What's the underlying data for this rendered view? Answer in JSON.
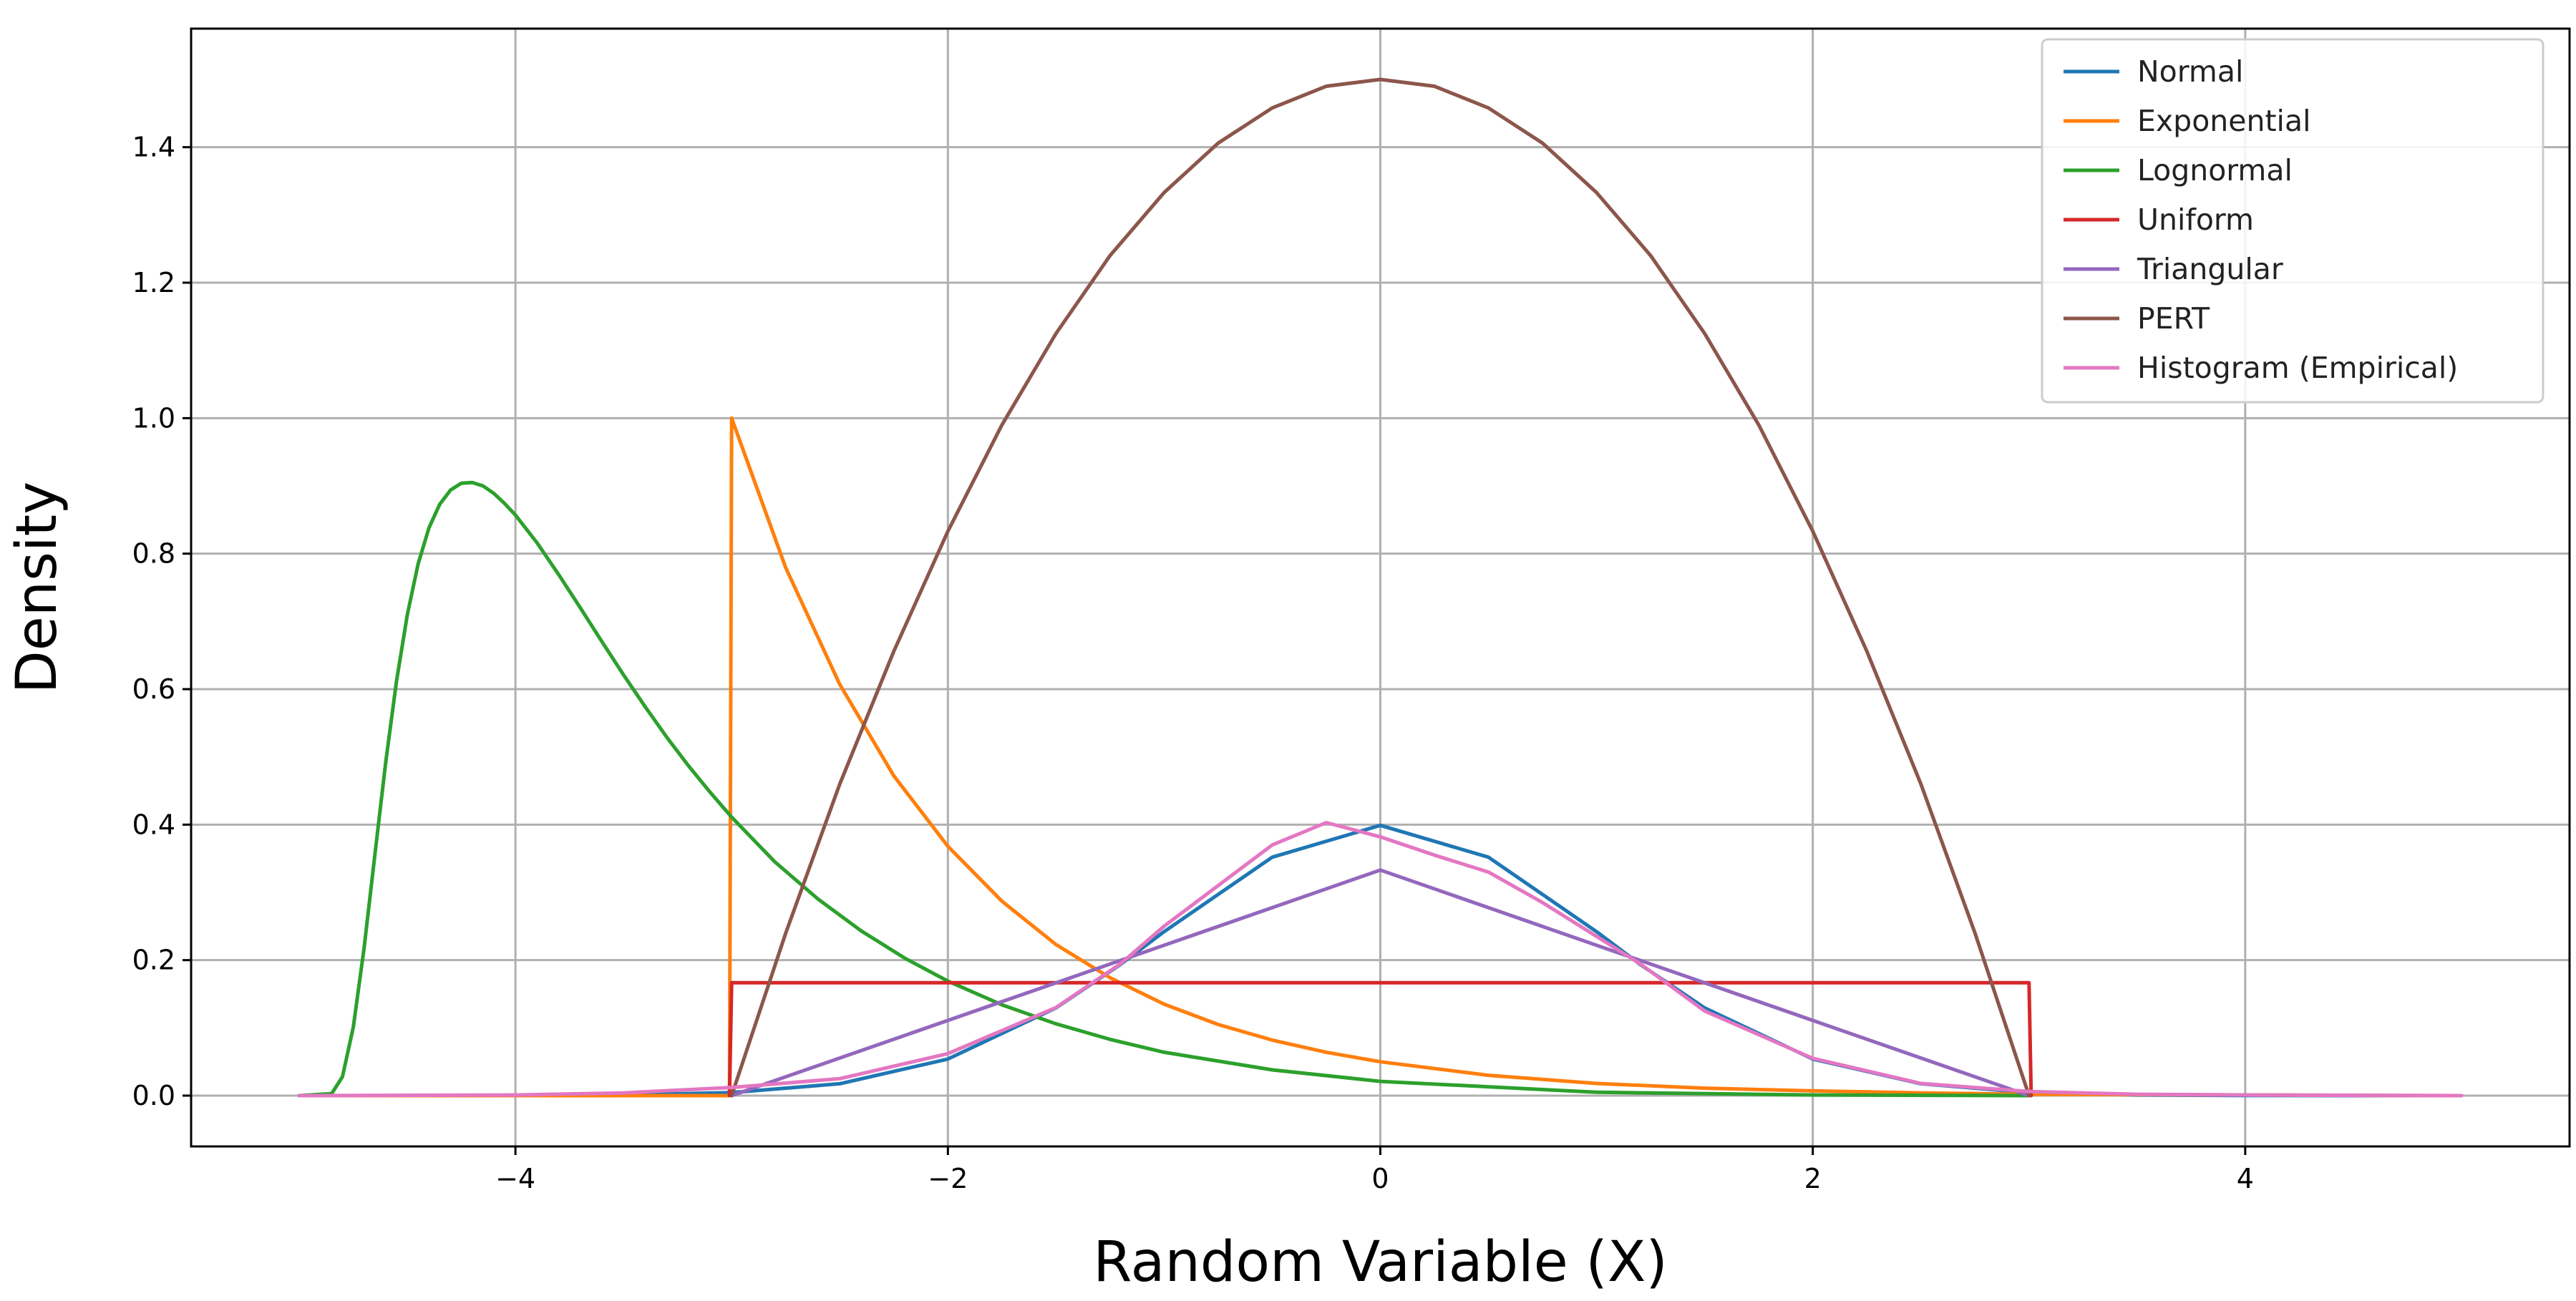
{
  "chart_data": {
    "type": "line",
    "title": "",
    "xlabel": "Random Variable (X)",
    "ylabel": "Density",
    "xlim": [
      -5.5,
      5.5
    ],
    "ylim": [
      -0.075,
      1.575
    ],
    "x_ticks": [
      -4,
      -2,
      0,
      2,
      4
    ],
    "x_tick_labels": [
      "−4",
      "−2",
      "0",
      "2",
      "4"
    ],
    "y_ticks": [
      0.0,
      0.2,
      0.4,
      0.6,
      0.8,
      1.0,
      1.2,
      1.4
    ],
    "y_tick_labels": [
      "0.0",
      "0.2",
      "0.4",
      "0.6",
      "0.8",
      "1.0",
      "1.2",
      "1.4"
    ],
    "grid": true,
    "legend_position": "top-right",
    "series": [
      {
        "name": "Normal",
        "color": "#1f77b4",
        "x": [
          -5,
          -4,
          -3.5,
          -3,
          -2.5,
          -2,
          -1.5,
          -1.2,
          -1,
          -0.5,
          0,
          0.5,
          1,
          1.2,
          1.5,
          2,
          2.5,
          3,
          3.5,
          4,
          5
        ],
        "y": [
          0.0,
          0.0001,
          0.0009,
          0.0044,
          0.0175,
          0.054,
          0.1295,
          0.194,
          0.242,
          0.352,
          0.399,
          0.352,
          0.242,
          0.194,
          0.1295,
          0.054,
          0.0175,
          0.0044,
          0.0009,
          0.0001,
          0.0
        ]
      },
      {
        "name": "Exponential",
        "color": "#ff7f0e",
        "x": [
          -5,
          -3.01,
          -3,
          -2.75,
          -2.5,
          -2.25,
          -2,
          -1.75,
          -1.5,
          -1.25,
          -1,
          -0.75,
          -0.5,
          -0.25,
          0,
          0.5,
          1,
          1.5,
          2,
          2.5,
          3,
          5
        ],
        "y": [
          0.0,
          0.0,
          1.0,
          0.779,
          0.607,
          0.472,
          0.368,
          0.287,
          0.223,
          0.174,
          0.135,
          0.105,
          0.082,
          0.064,
          0.05,
          0.03,
          0.018,
          0.011,
          0.007,
          0.004,
          0.002,
          0.0
        ]
      },
      {
        "name": "Lognormal",
        "color": "#2ca02c",
        "x": [
          -5,
          -4.85,
          -4.8,
          -4.75,
          -4.7,
          -4.65,
          -4.6,
          -4.55,
          -4.5,
          -4.45,
          -4.4,
          -4.35,
          -4.3,
          -4.25,
          -4.2,
          -4.15,
          -4.1,
          -4.05,
          -4,
          -3.9,
          -3.8,
          -3.7,
          -3.6,
          -3.5,
          -3.4,
          -3.3,
          -3.2,
          -3.1,
          -3,
          -2.8,
          -2.6,
          -2.4,
          -2.2,
          -2,
          -1.75,
          -1.5,
          -1.25,
          -1,
          -0.5,
          0,
          1,
          2,
          3
        ],
        "y": [
          0.0,
          0.003,
          0.028,
          0.101,
          0.218,
          0.356,
          0.492,
          0.612,
          0.71,
          0.785,
          0.838,
          0.873,
          0.894,
          0.904,
          0.905,
          0.9,
          0.889,
          0.874,
          0.857,
          0.816,
          0.769,
          0.72,
          0.67,
          0.621,
          0.574,
          0.529,
          0.487,
          0.448,
          0.411,
          0.345,
          0.29,
          0.243,
          0.203,
          0.169,
          0.134,
          0.106,
          0.083,
          0.064,
          0.038,
          0.021,
          0.005,
          0.001,
          0.0
        ]
      },
      {
        "name": "Uniform",
        "color": "#d62728",
        "x": [
          -3.01,
          -3,
          3,
          3.01
        ],
        "y": [
          0.0,
          0.1667,
          0.1667,
          0.0
        ]
      },
      {
        "name": "Triangular",
        "color": "#9467bd",
        "x": [
          -3,
          0,
          3
        ],
        "y": [
          0.0,
          0.333,
          0.0
        ]
      },
      {
        "name": "PERT",
        "color": "#8c564b",
        "x": [
          -3,
          -2.75,
          -2.5,
          -2.25,
          -2,
          -1.75,
          -1.5,
          -1.25,
          -1,
          -0.75,
          -0.5,
          -0.25,
          0,
          0.25,
          0.5,
          0.75,
          1,
          1.25,
          1.5,
          1.75,
          2,
          2.25,
          2.5,
          2.75,
          3
        ],
        "y": [
          0.0,
          0.24,
          0.46,
          0.656,
          0.833,
          0.99,
          1.125,
          1.24,
          1.333,
          1.406,
          1.458,
          1.49,
          1.5,
          1.49,
          1.458,
          1.406,
          1.333,
          1.24,
          1.125,
          0.99,
          0.833,
          0.656,
          0.46,
          0.24,
          0.0
        ]
      },
      {
        "name": "Histogram (Empirical)",
        "color": "#e377c2",
        "x": [
          -5,
          -4,
          -3.5,
          -3,
          -2.5,
          -2,
          -1.5,
          -1.2,
          -1,
          -0.75,
          -0.5,
          -0.25,
          0,
          0.25,
          0.5,
          0.75,
          1,
          1.2,
          1.5,
          2,
          2.5,
          3,
          3.5,
          4,
          5
        ],
        "y": [
          0.0,
          0.001,
          0.004,
          0.012,
          0.025,
          0.062,
          0.13,
          0.195,
          0.25,
          0.31,
          0.37,
          0.403,
          0.382,
          0.355,
          0.33,
          0.285,
          0.235,
          0.195,
          0.125,
          0.055,
          0.018,
          0.006,
          0.002,
          0.001,
          0.0
        ]
      }
    ]
  }
}
